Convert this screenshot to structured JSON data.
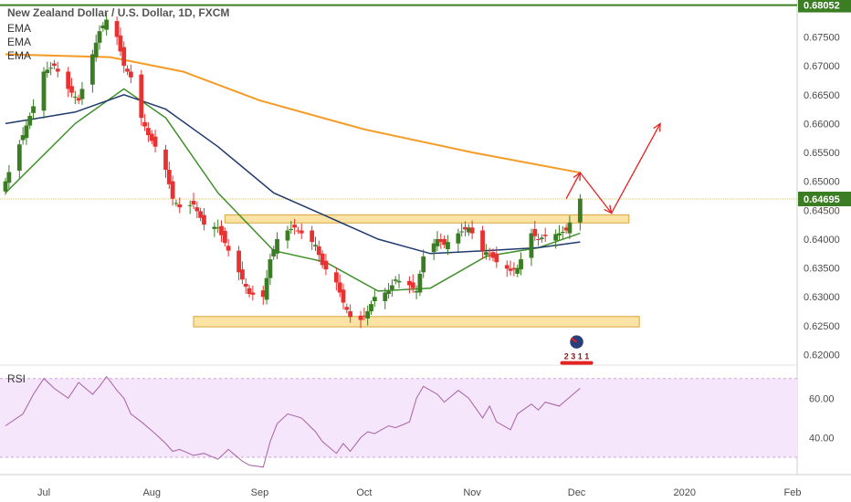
{
  "header": {
    "title": "New Zealand Dollar / U.S. Dollar, 1D, FXCM",
    "indicators": [
      "EMA",
      "EMA",
      "EMA"
    ]
  },
  "rsi_panel": {
    "label": "RSI",
    "ticks": [
      "60.00",
      "40.00"
    ]
  },
  "price_axis": {
    "ticks": [
      "0.67500",
      "0.67000",
      "0.66500",
      "0.66000",
      "0.65500",
      "0.65000",
      "0.64500",
      "0.64000",
      "0.63500",
      "0.63000",
      "0.62500",
      "0.62000"
    ],
    "labels": {
      "resistance": "0.68052",
      "last": "0.64695"
    }
  },
  "time_axis": {
    "labels": [
      "Jul",
      "Aug",
      "Sep",
      "Oct",
      "Nov",
      "Dec",
      "2020",
      "Feb"
    ]
  },
  "colors": {
    "up": "#3a7d23",
    "down": "#e83232",
    "ema_fast": "#3f8f2a",
    "ema_mid": "#1f3a6e",
    "ema_slow": "#f59a23",
    "rsi": "#a661a6",
    "rsi_band": "#f5e6fb",
    "zone": "#fbe3a6",
    "zone_border": "#d6a63a",
    "resistance": "#3a7d23",
    "arrow": "#e32222"
  },
  "icon": {
    "name": "new-zealand-flag-icon",
    "label": "2 3 1 1"
  },
  "chart_data": {
    "type": "candlestick",
    "title": "New Zealand Dollar / U.S. Dollar, 1D, FXCM",
    "x_labels": [
      "Jul",
      "Aug",
      "Sep",
      "Oct",
      "Nov",
      "Dec",
      "2020",
      "Feb"
    ],
    "y_ticks": [
      0.675,
      0.67,
      0.665,
      0.66,
      0.655,
      0.65,
      0.645,
      0.64,
      0.635,
      0.63,
      0.625,
      0.62
    ],
    "ylim": [
      0.6185,
      0.6814
    ],
    "resistance_line": 0.68052,
    "last_price": 0.64695,
    "zones": [
      {
        "from": "2019-08-22",
        "to": "2019-12-16",
        "low": 0.6428,
        "high": 0.6442
      },
      {
        "from": "2019-08-13",
        "to": "2019-12-19",
        "low": 0.6248,
        "high": 0.6266
      }
    ],
    "close_path": [
      [
        "2019-06-20",
        0.65
      ],
      [
        "2019-06-25",
        0.658
      ],
      [
        "2019-06-28",
        0.663
      ],
      [
        "2019-07-01",
        0.669
      ],
      [
        "2019-07-04",
        0.67
      ],
      [
        "2019-07-08",
        0.666
      ],
      [
        "2019-07-11",
        0.664
      ],
      [
        "2019-07-15",
        0.672
      ],
      [
        "2019-07-17",
        0.676
      ],
      [
        "2019-07-19",
        0.678
      ],
      [
        "2019-07-22",
        0.675
      ],
      [
        "2019-07-24",
        0.67
      ],
      [
        "2019-07-26",
        0.668
      ],
      [
        "2019-07-29",
        0.661
      ],
      [
        "2019-07-31",
        0.658
      ],
      [
        "2019-08-02",
        0.656
      ],
      [
        "2019-08-05",
        0.652
      ],
      [
        "2019-08-07",
        0.647
      ],
      [
        "2019-08-09",
        0.6455
      ],
      [
        "2019-08-13",
        0.646
      ],
      [
        "2019-08-16",
        0.6425
      ],
      [
        "2019-08-20",
        0.642
      ],
      [
        "2019-08-23",
        0.638
      ],
      [
        "2019-08-27",
        0.633
      ],
      [
        "2019-08-29",
        0.6305
      ],
      [
        "2019-09-02",
        0.63
      ],
      [
        "2019-09-04",
        0.6365
      ],
      [
        "2019-09-06",
        0.64
      ],
      [
        "2019-09-09",
        0.6415
      ],
      [
        "2019-09-11",
        0.642
      ],
      [
        "2019-09-13",
        0.641
      ],
      [
        "2019-09-17",
        0.639
      ],
      [
        "2019-09-19",
        0.6355
      ],
      [
        "2019-09-23",
        0.6325
      ],
      [
        "2019-09-25",
        0.629
      ],
      [
        "2019-09-27",
        0.6265
      ],
      [
        "2019-09-30",
        0.626
      ],
      [
        "2019-10-02",
        0.6275
      ],
      [
        "2019-10-04",
        0.63
      ],
      [
        "2019-10-08",
        0.631
      ],
      [
        "2019-10-10",
        0.633
      ],
      [
        "2019-10-14",
        0.632
      ],
      [
        "2019-10-16",
        0.631
      ],
      [
        "2019-10-18",
        0.637
      ],
      [
        "2019-10-22",
        0.64
      ],
      [
        "2019-10-24",
        0.639
      ],
      [
        "2019-10-28",
        0.641
      ],
      [
        "2019-10-31",
        0.642
      ],
      [
        "2019-11-04",
        0.638
      ],
      [
        "2019-11-06",
        0.6375
      ],
      [
        "2019-11-08",
        0.636
      ],
      [
        "2019-11-12",
        0.6345
      ],
      [
        "2019-11-14",
        0.635
      ],
      [
        "2019-11-18",
        0.641
      ],
      [
        "2019-11-20",
        0.64
      ],
      [
        "2019-11-22",
        0.6405
      ],
      [
        "2019-11-26",
        0.641
      ],
      [
        "2019-11-28",
        0.6415
      ],
      [
        "2019-12-02",
        0.647
      ]
    ],
    "series": [
      {
        "type": "ema",
        "points": [
          [
            "2019-06-20",
            0.648
          ],
          [
            "2019-07-10",
            0.66
          ],
          [
            "2019-07-24",
            0.666
          ],
          [
            "2019-08-05",
            0.661
          ],
          [
            "2019-08-20",
            0.648
          ],
          [
            "2019-09-05",
            0.638
          ],
          [
            "2019-09-20",
            0.636
          ],
          [
            "2019-10-05",
            0.631
          ],
          [
            "2019-10-20",
            0.6315
          ],
          [
            "2019-11-05",
            0.637
          ],
          [
            "2019-11-20",
            0.6385
          ],
          [
            "2019-12-02",
            0.641
          ]
        ]
      },
      {
        "type": "ema",
        "points": [
          [
            "2019-06-20",
            0.66
          ],
          [
            "2019-07-10",
            0.662
          ],
          [
            "2019-07-24",
            0.665
          ],
          [
            "2019-08-05",
            0.6625
          ],
          [
            "2019-08-20",
            0.656
          ],
          [
            "2019-09-05",
            0.648
          ],
          [
            "2019-09-20",
            0.644
          ],
          [
            "2019-10-05",
            0.64
          ],
          [
            "2019-10-20",
            0.6375
          ],
          [
            "2019-11-05",
            0.638
          ],
          [
            "2019-11-20",
            0.6385
          ],
          [
            "2019-12-02",
            0.6395
          ]
        ]
      },
      {
        "type": "ema",
        "points": [
          [
            "2019-06-20",
            0.672
          ],
          [
            "2019-07-20",
            0.6715
          ],
          [
            "2019-08-10",
            0.669
          ],
          [
            "2019-09-01",
            0.664
          ],
          [
            "2019-10-01",
            0.659
          ],
          [
            "2019-11-01",
            0.655
          ],
          [
            "2019-12-02",
            0.6515
          ]
        ]
      }
    ],
    "projection": [
      [
        "2019-12-02",
        0.6515
      ],
      [
        "2019-12-11",
        0.6445
      ],
      [
        "2019-12-25",
        0.66
      ]
    ],
    "rsi": {
      "yticks": [
        60,
        40
      ],
      "band": [
        70,
        30
      ],
      "points": [
        [
          "2019-06-20",
          46
        ],
        [
          "2019-06-25",
          52
        ],
        [
          "2019-06-28",
          62
        ],
        [
          "2019-07-01",
          70
        ],
        [
          "2019-07-04",
          65
        ],
        [
          "2019-07-08",
          60
        ],
        [
          "2019-07-11",
          68
        ],
        [
          "2019-07-15",
          62
        ],
        [
          "2019-07-17",
          66
        ],
        [
          "2019-07-19",
          71
        ],
        [
          "2019-07-22",
          64
        ],
        [
          "2019-07-24",
          60
        ],
        [
          "2019-07-26",
          52
        ],
        [
          "2019-07-29",
          48
        ],
        [
          "2019-07-31",
          45
        ],
        [
          "2019-08-02",
          42
        ],
        [
          "2019-08-05",
          37
        ],
        [
          "2019-08-07",
          33
        ],
        [
          "2019-08-09",
          34
        ],
        [
          "2019-08-13",
          31
        ],
        [
          "2019-08-16",
          32
        ],
        [
          "2019-08-20",
          29
        ],
        [
          "2019-08-23",
          34
        ],
        [
          "2019-08-27",
          28
        ],
        [
          "2019-08-29",
          26
        ],
        [
          "2019-09-02",
          25
        ],
        [
          "2019-09-04",
          38
        ],
        [
          "2019-09-06",
          47
        ],
        [
          "2019-09-09",
          52
        ],
        [
          "2019-09-11",
          51
        ],
        [
          "2019-09-13",
          50
        ],
        [
          "2019-09-17",
          43
        ],
        [
          "2019-09-19",
          38
        ],
        [
          "2019-09-23",
          32
        ],
        [
          "2019-09-25",
          37
        ],
        [
          "2019-09-27",
          33
        ],
        [
          "2019-09-30",
          40
        ],
        [
          "2019-10-02",
          43
        ],
        [
          "2019-10-04",
          42
        ],
        [
          "2019-10-08",
          46
        ],
        [
          "2019-10-10",
          45
        ],
        [
          "2019-10-14",
          48
        ],
        [
          "2019-10-16",
          60
        ],
        [
          "2019-10-18",
          66
        ],
        [
          "2019-10-22",
          62
        ],
        [
          "2019-10-24",
          58
        ],
        [
          "2019-10-28",
          64
        ],
        [
          "2019-10-31",
          60
        ],
        [
          "2019-11-04",
          50
        ],
        [
          "2019-11-06",
          56
        ],
        [
          "2019-11-08",
          48
        ],
        [
          "2019-11-12",
          44
        ],
        [
          "2019-11-14",
          52
        ],
        [
          "2019-11-18",
          57
        ],
        [
          "2019-11-20",
          54
        ],
        [
          "2019-11-22",
          58
        ],
        [
          "2019-11-26",
          56
        ],
        [
          "2019-11-28",
          59
        ],
        [
          "2019-12-02",
          65
        ]
      ]
    }
  }
}
